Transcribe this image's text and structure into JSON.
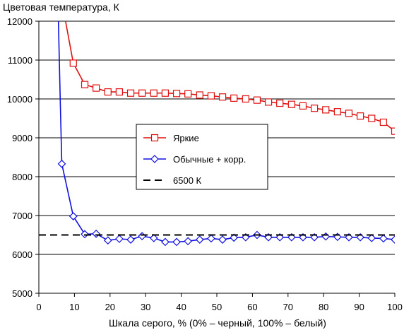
{
  "chart_data": {
    "type": "line",
    "title": "",
    "ylabel": "Цветовая температура, К",
    "xlabel": "Шкала серого, % (0% – черный, 100% – белый)",
    "xlim": [
      0,
      100
    ],
    "ylim": [
      5000,
      12000
    ],
    "xticks": [
      0,
      10,
      20,
      30,
      40,
      50,
      60,
      70,
      80,
      90,
      100
    ],
    "yticks": [
      5000,
      6000,
      7000,
      8000,
      9000,
      10000,
      11000,
      12000
    ],
    "grid": "horizontal",
    "legend_position": "center",
    "series": [
      {
        "name": "Яркие",
        "color": "#e01010",
        "marker": "square",
        "line_x": [
          6.5,
          7.5,
          9.68,
          12.9,
          16.1
        ],
        "line_y": [
          13000,
          12000,
          10920,
          10370,
          10280
        ],
        "x": [
          9.68,
          12.9,
          16.1,
          19.4,
          22.6,
          25.8,
          29.0,
          32.3,
          35.5,
          38.7,
          41.9,
          45.2,
          48.4,
          51.6,
          54.8,
          58.1,
          61.3,
          64.5,
          67.7,
          71.0,
          74.2,
          77.4,
          80.6,
          83.9,
          87.1,
          90.3,
          93.5,
          96.8,
          100
        ],
        "y": [
          10920,
          10370,
          10280,
          10180,
          10180,
          10150,
          10150,
          10150,
          10150,
          10140,
          10130,
          10100,
          10080,
          10050,
          10020,
          10000,
          9970,
          9920,
          9890,
          9860,
          9820,
          9760,
          9720,
          9670,
          9630,
          9560,
          9500,
          9400,
          9170
        ]
      },
      {
        "name": "Обычные + корр.",
        "color": "#1010e0",
        "marker": "diamond",
        "line_x": [
          5.5,
          6.0,
          6.45,
          9.68,
          12.9
        ],
        "line_y": [
          12000,
          10000,
          8330,
          6980,
          6520
        ],
        "x": [
          6.45,
          9.68,
          12.9,
          16.1,
          19.4,
          22.6,
          25.8,
          29.0,
          32.3,
          35.5,
          38.7,
          41.9,
          45.2,
          48.4,
          51.6,
          54.8,
          58.1,
          61.3,
          64.5,
          67.7,
          71.0,
          74.2,
          77.4,
          80.6,
          83.9,
          87.1,
          90.3,
          93.5,
          96.8,
          100
        ],
        "y": [
          8330,
          6980,
          6520,
          6530,
          6360,
          6400,
          6380,
          6470,
          6420,
          6320,
          6320,
          6340,
          6380,
          6410,
          6380,
          6430,
          6440,
          6500,
          6440,
          6440,
          6440,
          6440,
          6440,
          6460,
          6450,
          6440,
          6440,
          6420,
          6410,
          6380
        ]
      },
      {
        "name": "6500 К",
        "color": "#000000",
        "style": "dashed",
        "x": [
          0,
          100
        ],
        "y": [
          6500,
          6500
        ]
      }
    ]
  }
}
